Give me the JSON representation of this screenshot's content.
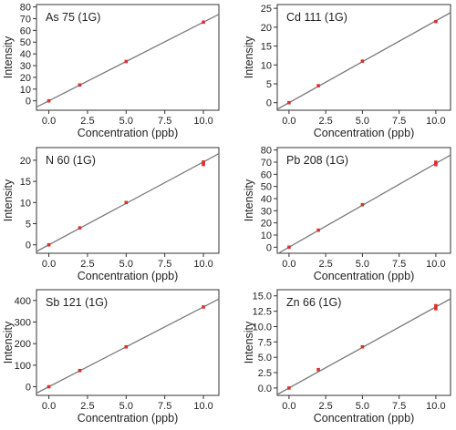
{
  "chart_data": [
    {
      "type": "scatter",
      "title": "As 75 (1G)",
      "xlabel": "Concentration (ppb)",
      "ylabel": "Intensity",
      "xlim": [
        -0.8,
        11.0
      ],
      "ylim": [
        -8,
        82
      ],
      "xticks": [
        0.0,
        2.5,
        5.0,
        7.5,
        10.0
      ],
      "xtick_labels": [
        "0.0",
        "2.5",
        "5.0",
        "7.5",
        "10.0"
      ],
      "yticks": [
        0,
        10,
        20,
        30,
        40,
        50,
        60,
        70,
        80
      ],
      "ytick_labels": [
        "0",
        "10",
        "20",
        "30",
        "40",
        "50",
        "60",
        "70",
        "80"
      ],
      "points": [
        {
          "x": 0,
          "y": 0
        },
        {
          "x": 2,
          "y": 13.5
        },
        {
          "x": 5,
          "y": 33.5
        },
        {
          "x": 10,
          "y": 67
        }
      ],
      "fit": {
        "slope": 6.7,
        "intercept": 0
      },
      "grid": false
    },
    {
      "type": "scatter",
      "title": "Cd 111 (1G)",
      "xlabel": "Concentration (ppb)",
      "ylabel": "Intensity",
      "xlim": [
        -0.8,
        11.0
      ],
      "ylim": [
        -2,
        26
      ],
      "xticks": [
        0.0,
        2.5,
        5.0,
        7.5,
        10.0
      ],
      "xtick_labels": [
        "0.0",
        "2.5",
        "5.0",
        "7.5",
        "10.0"
      ],
      "yticks": [
        0,
        5,
        10,
        15,
        20,
        25
      ],
      "ytick_labels": [
        "0",
        "5",
        "10",
        "15",
        "20",
        "25"
      ],
      "points": [
        {
          "x": 0,
          "y": 0
        },
        {
          "x": 2,
          "y": 4.5
        },
        {
          "x": 5,
          "y": 11
        },
        {
          "x": 10,
          "y": 21.5
        }
      ],
      "fit": {
        "slope": 2.17,
        "intercept": 0
      },
      "grid": false
    },
    {
      "type": "scatter",
      "title": "N 60 (1G)",
      "xlabel": "Concentration (ppb)",
      "ylabel": "Intensity",
      "xlim": [
        -0.8,
        11.0
      ],
      "ylim": [
        -2,
        23
      ],
      "xticks": [
        0.0,
        2.5,
        5.0,
        7.5,
        10.0
      ],
      "xtick_labels": [
        "0.0",
        "2.5",
        "5.0",
        "7.5",
        "10.0"
      ],
      "yticks": [
        0,
        5,
        10,
        15,
        20
      ],
      "ytick_labels": [
        "0",
        "5",
        "10",
        "15",
        "20"
      ],
      "points": [
        {
          "x": 0,
          "y": 0
        },
        {
          "x": 2,
          "y": 4
        },
        {
          "x": 5,
          "y": 10
        },
        {
          "x": 10,
          "y": 19
        },
        {
          "x": 10,
          "y": 19.6
        }
      ],
      "fit": {
        "slope": 1.96,
        "intercept": 0
      },
      "grid": false
    },
    {
      "type": "scatter",
      "title": "Pb 208 (1G)",
      "xlabel": "Concentration (ppb)",
      "ylabel": "Intensity",
      "xlim": [
        -0.8,
        11.0
      ],
      "ylim": [
        -5,
        82
      ],
      "xticks": [
        0.0,
        2.5,
        5.0,
        7.5,
        10.0
      ],
      "xtick_labels": [
        "0.0",
        "2.5",
        "5.0",
        "7.5",
        "10.0"
      ],
      "yticks": [
        0,
        10,
        20,
        30,
        40,
        50,
        60,
        70,
        80
      ],
      "ytick_labels": [
        "0",
        "10",
        "20",
        "30",
        "40",
        "50",
        "60",
        "70",
        "80"
      ],
      "points": [
        {
          "x": 0,
          "y": 0
        },
        {
          "x": 2,
          "y": 14
        },
        {
          "x": 5,
          "y": 35
        },
        {
          "x": 10,
          "y": 68
        },
        {
          "x": 10,
          "y": 70
        }
      ],
      "fit": {
        "slope": 6.9,
        "intercept": 0
      },
      "grid": false
    },
    {
      "type": "scatter",
      "title": "Sb 121 (1G)",
      "xlabel": "Concentration (ppb)",
      "ylabel": "Intensity",
      "xlim": [
        -0.8,
        11.0
      ],
      "ylim": [
        -40,
        450
      ],
      "xticks": [
        0.0,
        2.5,
        5.0,
        7.5,
        10.0
      ],
      "xtick_labels": [
        "0.0",
        "2.5",
        "5.0",
        "7.5",
        "10.0"
      ],
      "yticks": [
        0,
        100,
        200,
        300,
        400
      ],
      "ytick_labels": [
        "0",
        "100",
        "200",
        "300",
        "400"
      ],
      "points": [
        {
          "x": 0,
          "y": 0
        },
        {
          "x": 2,
          "y": 75
        },
        {
          "x": 5,
          "y": 185
        },
        {
          "x": 10,
          "y": 370
        }
      ],
      "fit": {
        "slope": 37,
        "intercept": 0
      },
      "grid": false
    },
    {
      "type": "scatter",
      "title": "Zn 66 (1G)",
      "xlabel": "Concentration (ppb)",
      "ylabel": "Intensity",
      "xlim": [
        -0.8,
        11.0
      ],
      "ylim": [
        -1.2,
        16
      ],
      "xticks": [
        0.0,
        2.5,
        5.0,
        7.5,
        10.0
      ],
      "xtick_labels": [
        "0.0",
        "2.5",
        "5.0",
        "7.5",
        "10.0"
      ],
      "yticks": [
        0.0,
        2.5,
        5.0,
        7.5,
        10.0,
        12.5,
        15.0
      ],
      "ytick_labels": [
        "0.0",
        "2.5",
        "5.0",
        "7.5",
        "10.0",
        "12.5",
        "15.0"
      ],
      "points": [
        {
          "x": 0,
          "y": 0
        },
        {
          "x": 2,
          "y": 3
        },
        {
          "x": 5,
          "y": 6.7
        },
        {
          "x": 10,
          "y": 12.9
        },
        {
          "x": 10,
          "y": 13.4
        }
      ],
      "fit": {
        "slope": 1.32,
        "intercept": 0
      },
      "grid": false
    }
  ],
  "colors": {
    "points": "#d9312b",
    "fit_line": "#7a7a7a",
    "frame": "#333333"
  }
}
